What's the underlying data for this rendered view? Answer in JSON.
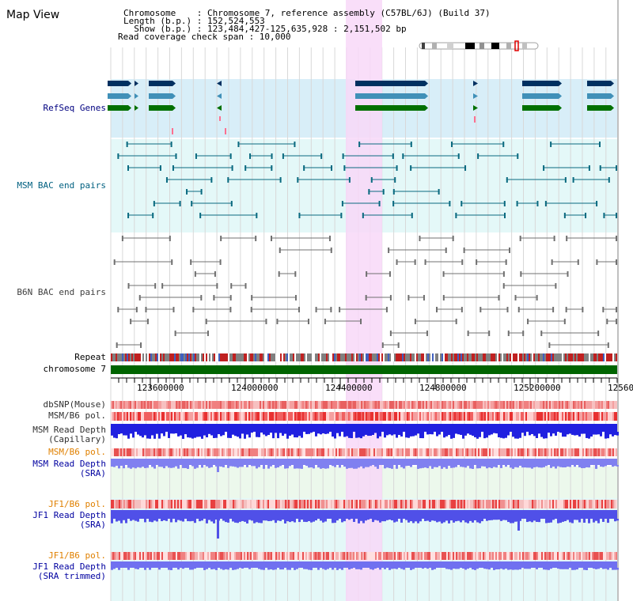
{
  "view_title": "Map View",
  "header": {
    "chromosome_line": "Chromosome    : Chromosome 7, reference assembly (C57BL/6J) (Build 37)",
    "length_line": "Length (b.p.) : 152,524,553",
    "show_line": "  Show (b.p.) : 123,484,427-125,635,928 : 2,151,502 bp",
    "coverage_line": "Read coverage check span : 10,000"
  },
  "tracks": {
    "refseq": "RefSeq Genes",
    "msm_bac": "MSM BAC end pairs",
    "b6n_bac": "B6N BAC end pairs",
    "repeat": "Repeat",
    "chromosome": "chromosome 7",
    "dbsnp": "dbSNP(Mouse)",
    "msm_pol_1": "MSM/B6 pol.",
    "msm_depth_cap_1": "MSM Read Depth",
    "msm_depth_cap_2": "(Capillary)",
    "msm_pol_2": "MSM/B6 pol.",
    "msm_depth_sra_1": "MSM Read Depth",
    "msm_depth_sra_2": "(SRA)",
    "jf1_pol_1": "JF1/B6 pol.",
    "jf1_depth_sra_1": "JF1 Read Depth",
    "jf1_depth_sra_2": "(SRA)",
    "jf1_pol_2": "JF1/B6 pol.",
    "jf1_depth_trim_1": "JF1 Read Depth",
    "jf1_depth_trim_2": "(SRA trimmed)"
  },
  "axis": {
    "ticks": [
      "123600000",
      "124000000",
      "124400000",
      "124800000",
      "125200000",
      "12560"
    ]
  },
  "colors": {
    "refseq_label": "#000080",
    "msm_label": "#006080",
    "b6n_label": "#404040",
    "orange_label": "#e08000",
    "blue_label": "#0000a0",
    "highlight": "#f8d8f8",
    "refseq_bg": "#d8eef8",
    "msm_bg": "#e4f8f8",
    "chromosome_bar": "#006400"
  }
}
